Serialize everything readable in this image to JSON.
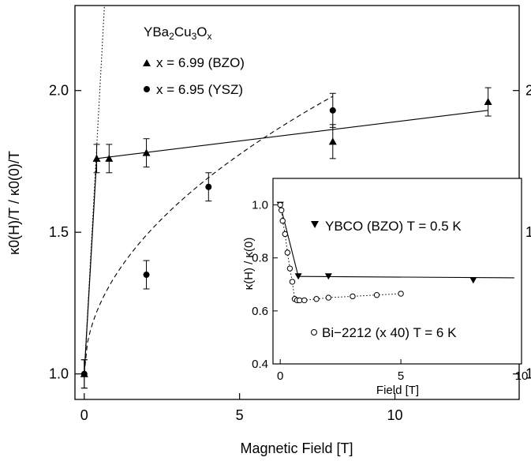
{
  "chart_data": [
    {
      "type": "scatter",
      "title": "",
      "xlabel": "Magnetic Field [T]",
      "ylabel": "κ0(H)/T / κ0(0)/T",
      "xlim": [
        -0.3,
        14
      ],
      "ylim": [
        0.91,
        2.3
      ],
      "x_ticks": [
        0,
        5,
        10
      ],
      "y_ticks": [
        1.0,
        1.5,
        2.0
      ],
      "x_tick_labels": [
        "0",
        "5",
        "10"
      ],
      "y_tick_labels": [
        "1.0",
        "1.5",
        "2.0"
      ],
      "grid": false,
      "legend_title": {
        "base": "YBa",
        "s1": "2",
        "mid1": "Cu",
        "s2": "3",
        "mid2": "O",
        "s3": "x"
      },
      "legend_position": "top-left",
      "series": [
        {
          "name": "x = 6.99 (BZO)",
          "marker": "triangle-up",
          "x": [
            0,
            0.4,
            0.8,
            2,
            8,
            13
          ],
          "y": [
            1.0,
            1.76,
            1.76,
            1.78,
            1.82,
            1.96
          ],
          "err": [
            0.05,
            0.05,
            0.05,
            0.05,
            0.06,
            0.05
          ]
        },
        {
          "name": "x = 6.95 (YSZ)",
          "marker": "circle",
          "x": [
            0,
            2,
            4,
            8
          ],
          "y": [
            1.0,
            1.35,
            1.66,
            1.93
          ],
          "err": [
            0.05,
            0.05,
            0.05,
            0.06
          ]
        }
      ],
      "fits": [
        {
          "style": "solid",
          "x": [
            0,
            0.4,
            13
          ],
          "y": [
            1.0,
            1.76,
            1.93
          ]
        },
        {
          "style": "dashed",
          "form": "1 + 0.3464*sqrt(x)",
          "x_range": [
            0,
            8
          ]
        },
        {
          "style": "dotted",
          "form": "1 + 2.0*x",
          "x_range": [
            0,
            0.65
          ]
        }
      ]
    },
    {
      "type": "scatter",
      "title": "",
      "xlabel": "Field [T]",
      "ylabel": "κ(H) / κ(0)",
      "xlim": [
        -0.3,
        10
      ],
      "ylim": [
        0.4,
        1.1
      ],
      "x_ticks": [
        0,
        5,
        10
      ],
      "y_ticks": [
        0.4,
        0.6,
        0.8,
        1.0
      ],
      "x_tick_labels": [
        "0",
        "5",
        "10"
      ],
      "y_tick_labels": [
        "0.4",
        "0.6",
        "0.8",
        "1.0"
      ],
      "series": [
        {
          "name": "YBCO (BZO) T = 0.5 K",
          "marker": "triangle-down",
          "x": [
            0,
            0.75,
            2,
            8
          ],
          "y": [
            1.0,
            0.73,
            0.73,
            0.715
          ],
          "line": {
            "style": "solid",
            "x": [
              0,
              0.75,
              9.7
            ],
            "y": [
              1.0,
              0.73,
              0.725
            ]
          }
        },
        {
          "name": "Bi−2212 (x 40) T = 6 K",
          "marker": "open-circle",
          "x": [
            0,
            0.05,
            0.1,
            0.2,
            0.3,
            0.4,
            0.5,
            0.6,
            0.7,
            0.8,
            1.0,
            1.5,
            2.0,
            3.0,
            4.0,
            5.0
          ],
          "y": [
            1.0,
            0.98,
            0.94,
            0.89,
            0.82,
            0.76,
            0.71,
            0.645,
            0.64,
            0.64,
            0.64,
            0.645,
            0.65,
            0.655,
            0.66,
            0.665
          ],
          "line": {
            "style": "dotted"
          }
        }
      ]
    }
  ]
}
